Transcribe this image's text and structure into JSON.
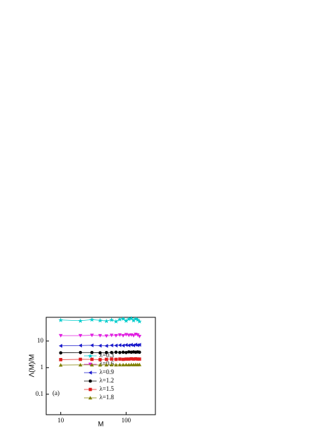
{
  "chart_data": {
    "type": "line",
    "x_label": "M",
    "y_label": "Λ(M)/M",
    "annotation": "(a)",
    "log_x": true,
    "log_y": true,
    "xlim": [
      6,
      280
    ],
    "xticks": [
      10,
      100
    ],
    "ylim": [
      0.017,
      78
    ],
    "yticks": [
      0.1,
      1,
      10
    ],
    "legend": "lower center",
    "x": [
      10,
      20,
      30,
      40,
      50,
      60,
      70,
      80,
      90,
      100,
      110,
      120,
      130,
      140,
      150,
      160
    ],
    "series": [
      {
        "name": "λ=0.3",
        "color": "#00cccc",
        "marker": "star",
        "values": [
          62,
          58,
          64,
          60,
          57,
          63,
          55,
          66,
          70,
          58,
          68,
          72,
          60,
          70,
          64,
          55
        ]
      },
      {
        "name": "λ=0.6",
        "color": "#e020e0",
        "marker": "tri-down",
        "values": [
          16,
          16,
          16.5,
          16,
          15.5,
          16.5,
          16,
          17,
          16,
          17.5,
          16.5,
          17,
          16,
          18,
          17,
          15
        ]
      },
      {
        "name": "λ=0.9",
        "color": "#1a1acc",
        "marker": "tri-left",
        "values": [
          6.6,
          6.8,
          6.9,
          6.7,
          6.6,
          6.9,
          6.8,
          7.0,
          6.8,
          7.1,
          6.9,
          7.2,
          6.9,
          7.3,
          7.0,
          7.2
        ]
      },
      {
        "name": "λ=1.2",
        "color": "#000000",
        "marker": "circle",
        "values": [
          3.6,
          3.7,
          3.7,
          3.6,
          3.7,
          3.7,
          3.8,
          3.7,
          3.8,
          3.7,
          3.9,
          3.8,
          3.9,
          3.8,
          3.9,
          3.8
        ]
      },
      {
        "name": "λ=1.5",
        "color": "#e02020",
        "marker": "square",
        "values": [
          2.0,
          2.05,
          2.05,
          2.0,
          2.05,
          2.1,
          2.05,
          2.1,
          2.05,
          2.1,
          2.1,
          2.15,
          2.1,
          2.15,
          2.1,
          2.1
        ]
      },
      {
        "name": "λ=1.8",
        "color": "#808000",
        "marker": "tri-up",
        "values": [
          1.25,
          1.27,
          1.27,
          1.26,
          1.27,
          1.28,
          1.27,
          1.28,
          1.28,
          1.29,
          1.28,
          1.3,
          1.29,
          1.3,
          1.29,
          1.3
        ]
      }
    ]
  }
}
